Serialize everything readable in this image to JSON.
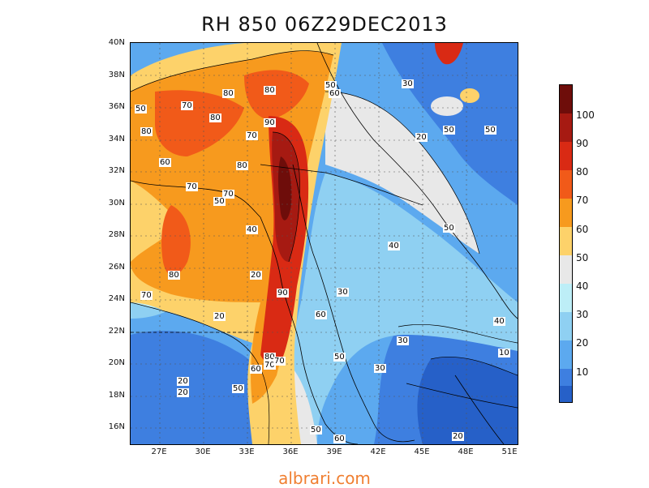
{
  "title": "RH 850 06Z29DEC2013",
  "website": "albrari.com",
  "axes": {
    "y_labels": [
      "40N",
      "38N",
      "36N",
      "34N",
      "32N",
      "30N",
      "28N",
      "26N",
      "24N",
      "22N",
      "20N",
      "18N",
      "16N"
    ],
    "x_labels": [
      "27E",
      "30E",
      "33E",
      "36E",
      "39E",
      "42E",
      "45E",
      "48E",
      "51E"
    ]
  },
  "colorbar": {
    "labels": [
      "100",
      "90",
      "80",
      "70",
      "60",
      "50",
      "40",
      "30",
      "20",
      "10"
    ],
    "colors": [
      "#6e0d0a",
      "#a61a12",
      "#d92a14",
      "#f15a19",
      "#f79a1e",
      "#fdd26a",
      "#e8e8e8",
      "#bdeef7",
      "#8fd0f2",
      "#5ca9ef",
      "#3e7fe0",
      "#2660c8"
    ]
  },
  "contour_labels": [
    {
      "text": "50"
    },
    {
      "text": "80"
    },
    {
      "text": "70"
    },
    {
      "text": "80"
    },
    {
      "text": "80"
    },
    {
      "text": "80"
    },
    {
      "text": "50"
    },
    {
      "text": "60"
    },
    {
      "text": "30"
    },
    {
      "text": "90"
    },
    {
      "text": "70"
    },
    {
      "text": "60"
    },
    {
      "text": "80"
    },
    {
      "text": "70"
    },
    {
      "text": "70"
    },
    {
      "text": "50"
    },
    {
      "text": "40"
    },
    {
      "text": "20"
    },
    {
      "text": "80"
    },
    {
      "text": "70"
    },
    {
      "text": "90"
    },
    {
      "text": "20"
    },
    {
      "text": "60"
    },
    {
      "text": "30"
    },
    {
      "text": "40"
    },
    {
      "text": "20"
    },
    {
      "text": "50"
    },
    {
      "text": "50"
    },
    {
      "text": "50"
    },
    {
      "text": "30"
    },
    {
      "text": "80"
    },
    {
      "text": "70"
    },
    {
      "text": "60"
    },
    {
      "text": "50"
    },
    {
      "text": "30"
    },
    {
      "text": "40"
    },
    {
      "text": "10"
    },
    {
      "text": "20"
    },
    {
      "text": "20"
    },
    {
      "text": "50"
    },
    {
      "text": "50"
    },
    {
      "text": "60"
    },
    {
      "text": "20"
    },
    {
      "text": "70"
    }
  ]
}
